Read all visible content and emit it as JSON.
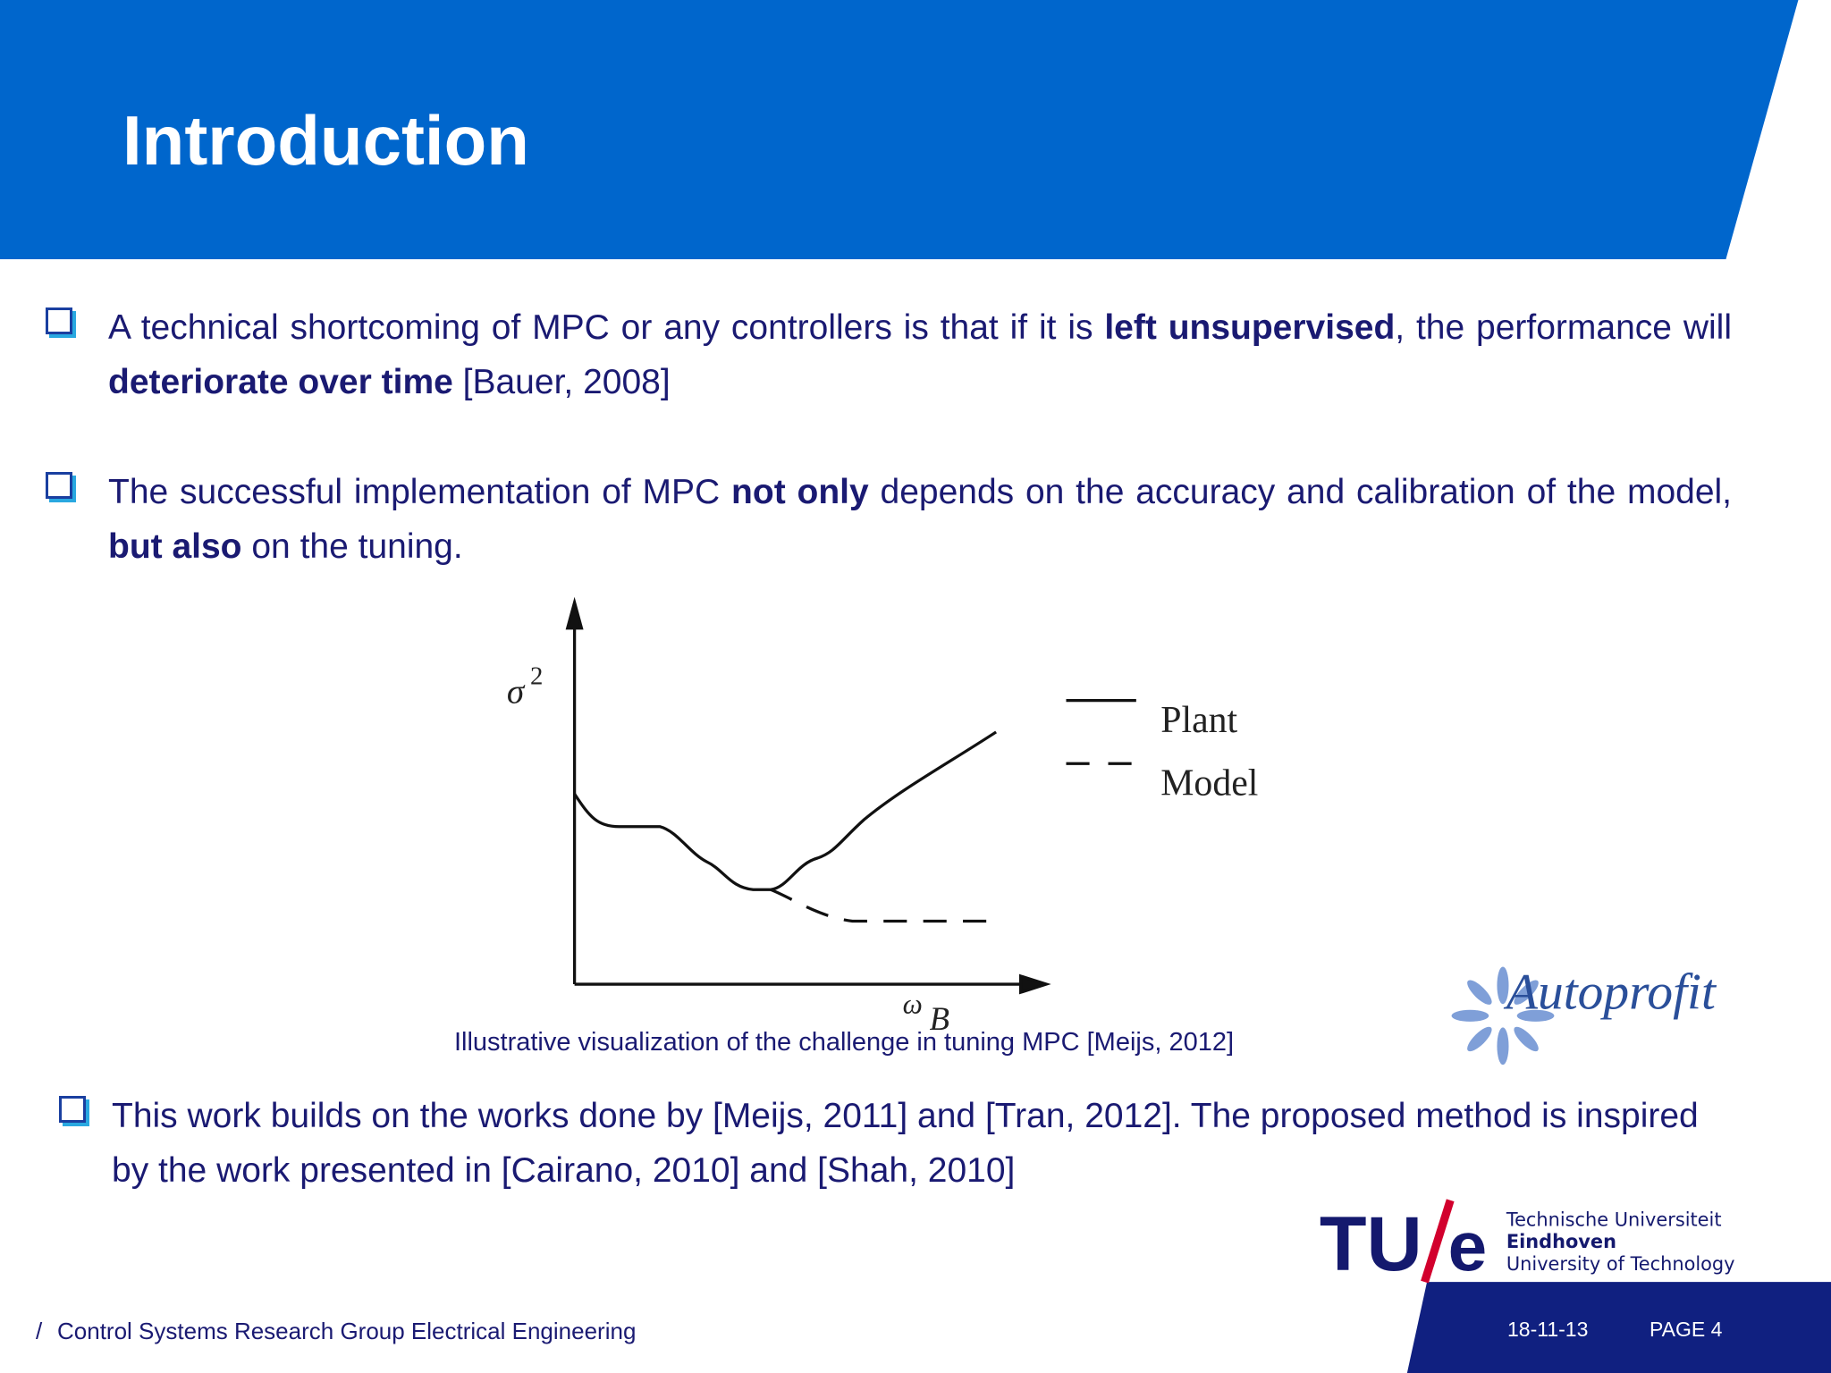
{
  "header": {
    "title": "Introduction"
  },
  "bullets": [
    {
      "parts": [
        "A technical shortcoming of MPC or any controllers is that if it is ",
        "left unsupervised",
        ", the performance will ",
        "deteriorate over time",
        " [Bauer, 2008]"
      ]
    },
    {
      "parts": [
        "The successful implementation of MPC ",
        "not only",
        " depends on the accuracy and calibration of the model, ",
        "but also",
        " on the tuning."
      ]
    },
    {
      "parts": [
        "This work builds on the works done by [Meijs, 2011] and [Tran, 2012]. The proposed method is inspired by the work presented in [Cairano, 2010] and [Shah, 2010]"
      ]
    }
  ],
  "figure": {
    "y_label": "σ",
    "y_label_sup": "2",
    "x_label": "ω",
    "x_label_sub": "B",
    "legend": [
      "Plant",
      "Model"
    ],
    "caption": "Illustrative visualization of the challenge in tuning MPC [Meijs, 2012]"
  },
  "logos": {
    "autoprofit": "Autoprofit",
    "tue_mark": "TU",
    "tue_mark_e": "e",
    "tue_lines": [
      "Technische Universiteit",
      "Eindhoven",
      "University of Technology"
    ]
  },
  "footer": {
    "slash": "/",
    "group": "Control Systems Research Group Electrical Engineering",
    "date": "18-11-13",
    "page": "PAGE 4"
  }
}
